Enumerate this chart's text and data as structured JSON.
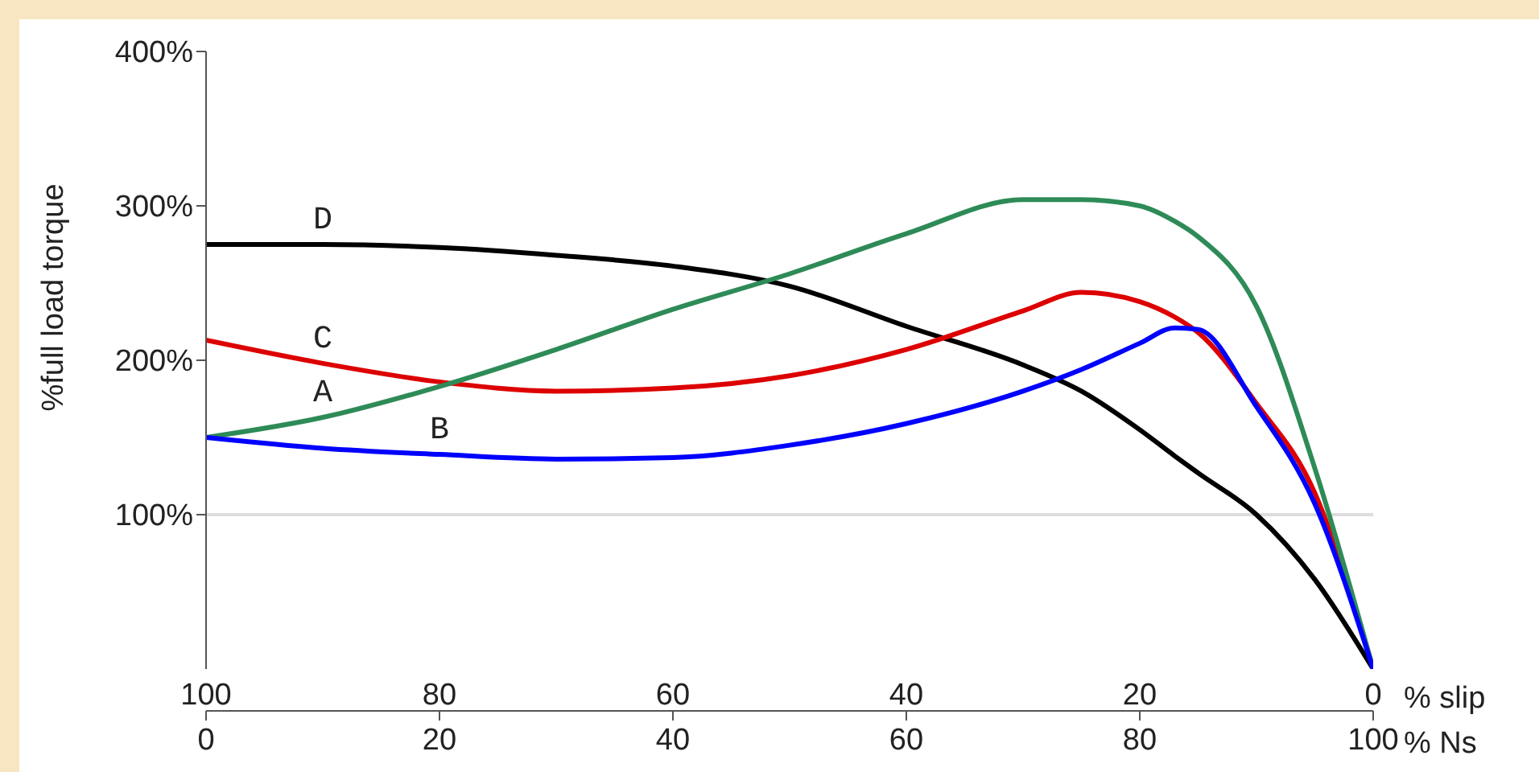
{
  "chart_data": {
    "type": "line",
    "ylabel": "%full load torque",
    "xlabel": "% Ns",
    "x2label": "% slip",
    "x": [
      0,
      10,
      20,
      30,
      40,
      50,
      60,
      70,
      75,
      80,
      83,
      85,
      90,
      95,
      100
    ],
    "xlim": [
      0,
      100
    ],
    "xticks": [
      0,
      20,
      40,
      60,
      80,
      100
    ],
    "x2lim": [
      100,
      0
    ],
    "x2ticks": [
      100,
      80,
      60,
      40,
      20,
      0
    ],
    "ylim": [
      0,
      400
    ],
    "yticks": [
      {
        "value": 100,
        "label": "100%"
      },
      {
        "value": 200,
        "label": "200%"
      },
      {
        "value": 300,
        "label": "300%"
      },
      {
        "value": 400,
        "label": "400%"
      }
    ],
    "grid": false,
    "marker": "none",
    "line_style": "solid",
    "ref_lines": [
      {
        "axis": "y",
        "value": 100,
        "color": "#dddddd"
      }
    ],
    "series": [
      {
        "name": "D",
        "color": "#000000",
        "values": [
          275,
          275,
          273,
          268,
          261,
          248,
          222,
          197,
          180,
          155,
          138,
          127,
          100,
          58,
          0
        ]
      },
      {
        "name": "C",
        "color": "#dd0000",
        "values": [
          213,
          198,
          186,
          180,
          182,
          190,
          207,
          232,
          244,
          238,
          228,
          218,
          172,
          114,
          0
        ]
      },
      {
        "name": "A",
        "color": "#2e8b57",
        "values": [
          150,
          163,
          183,
          207,
          233,
          256,
          282,
          304,
          304,
          300,
          290,
          280,
          235,
          130,
          0
        ]
      },
      {
        "name": "B",
        "color": "#0000ff",
        "values": [
          150,
          143,
          139,
          136,
          137,
          145,
          159,
          180,
          194,
          211,
          221,
          220,
          170,
          107,
          0
        ]
      }
    ]
  }
}
